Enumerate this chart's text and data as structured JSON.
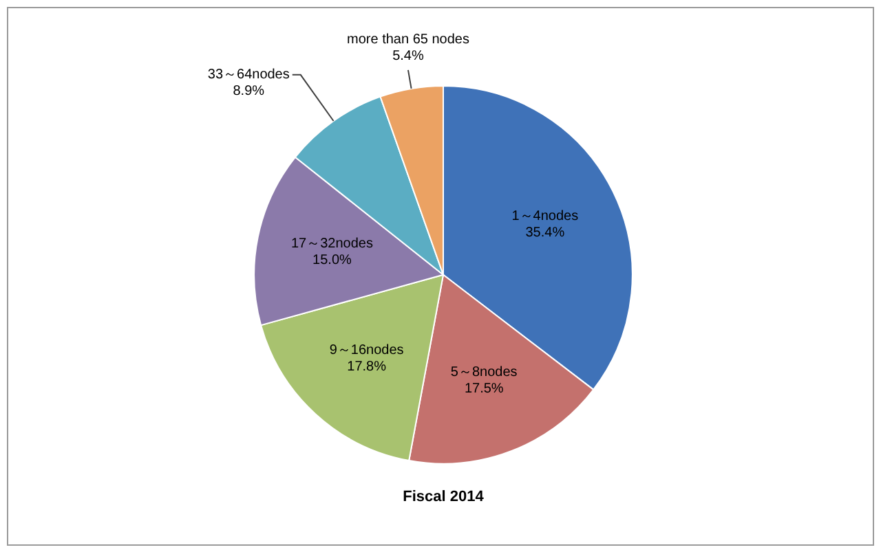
{
  "chart_data": {
    "type": "pie",
    "title": "Fiscal 2014",
    "categories": [
      "1～4nodes",
      "5～8nodes",
      "9～16nodes",
      "17～32nodes",
      "33～64nodes",
      "more than 65 nodes"
    ],
    "values": [
      35.4,
      17.5,
      17.8,
      15.0,
      8.9,
      5.4
    ],
    "value_labels": [
      "35.4%",
      "17.5%",
      "17.8%",
      "15.0%",
      "8.9%",
      "5.4%"
    ],
    "colors": [
      "#3f72b8",
      "#c4716d",
      "#a8c26f",
      "#8b7aaa",
      "#5badc3",
      "#eba263"
    ]
  }
}
